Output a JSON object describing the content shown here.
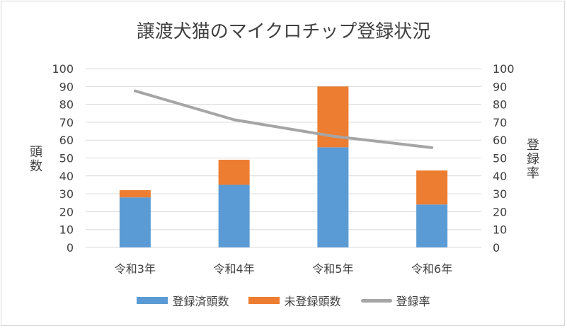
{
  "chart_data": {
    "type": "bar",
    "title": "譲渡犬猫のマイクロチップ登録状況",
    "categories": [
      "令和3年",
      "令和4年",
      "令和5年",
      "令和6年"
    ],
    "series": [
      {
        "name": "登録済頭数",
        "type": "bar",
        "stacked": true,
        "axis": "left",
        "color": "#5b9bd5",
        "values": [
          28,
          35,
          56,
          24
        ]
      },
      {
        "name": "未登録頭数",
        "type": "bar",
        "stacked": true,
        "axis": "left",
        "color": "#ed7d31",
        "values": [
          4,
          14,
          34,
          19
        ]
      },
      {
        "name": "登録率",
        "type": "line",
        "axis": "right",
        "color": "#a5a5a5",
        "values": [
          87.5,
          71.4,
          62.2,
          55.8
        ]
      }
    ],
    "ylabel": "頭数",
    "y2label": "登録率",
    "ylim": [
      0,
      100
    ],
    "y2lim": [
      0,
      100
    ],
    "yticks": [
      "0",
      "10",
      "20",
      "30",
      "40",
      "50",
      "60",
      "70",
      "80",
      "90",
      "100"
    ],
    "y2ticks": [
      "0",
      "10",
      "20",
      "30",
      "40",
      "50",
      "60",
      "70",
      "80",
      "90",
      "100"
    ],
    "grid": true,
    "legend_position": "bottom"
  }
}
